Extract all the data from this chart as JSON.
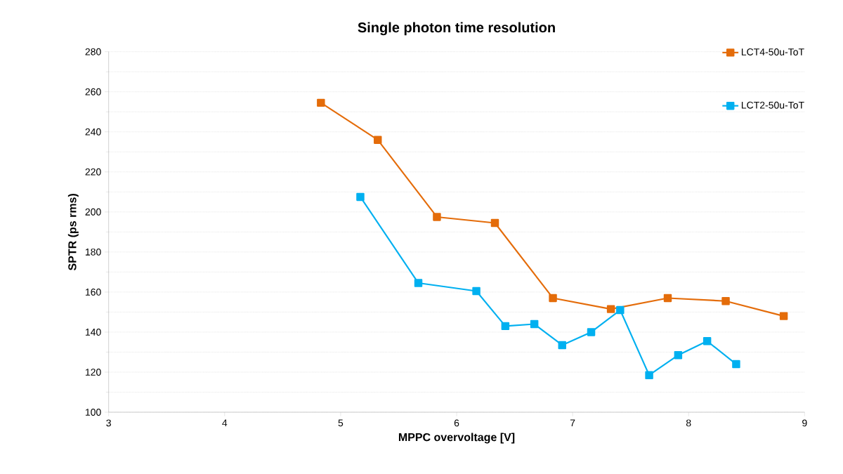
{
  "chart_data": {
    "type": "line",
    "title": "Single photon time resolution",
    "xlabel": "MPPC overvoltage [V]",
    "ylabel": "SPTR  (ps rms)",
    "xlim": [
      3,
      9
    ],
    "xticks": [
      3,
      4,
      5,
      6,
      7,
      8,
      9
    ],
    "ylim": [
      100,
      280
    ],
    "yticks": [
      100,
      120,
      140,
      160,
      180,
      200,
      220,
      240,
      260,
      280
    ],
    "grid": "y",
    "legend": "top right",
    "marker": "square",
    "line_style": "solid",
    "series": [
      {
        "name": "LCT4-50u-ToT",
        "color": "#e46c0a",
        "x": [
          4.83,
          5.32,
          5.83,
          6.33,
          6.83,
          7.33,
          7.82,
          8.32,
          8.82
        ],
        "values": [
          254.5,
          236,
          197.5,
          194.5,
          157,
          151.5,
          157,
          155.5,
          148
        ]
      },
      {
        "name": "LCT2-50u-ToT",
        "color": "#00b0f0",
        "x": [
          5.17,
          5.67,
          6.17,
          6.42,
          6.67,
          6.91,
          7.16,
          7.41,
          7.66,
          7.91,
          8.16,
          8.41
        ],
        "values": [
          207.5,
          164.5,
          160.5,
          143,
          144,
          133.5,
          140,
          151,
          118.5,
          128.5,
          135.5,
          124
        ]
      }
    ]
  }
}
